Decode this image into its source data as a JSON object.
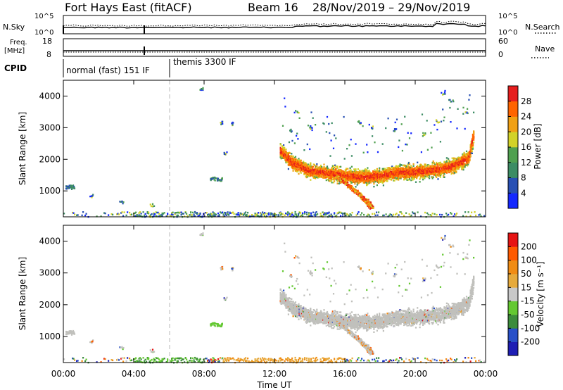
{
  "header": {
    "title": "Fort Hays East (fitACF)",
    "beam": "Beam 16",
    "date_range": "28/Nov/2019 – 29/Nov/2019"
  },
  "strip_noise": {
    "left_label": "N.Sky",
    "right_label": "N.Search",
    "left_ticks": [
      "10^5",
      "10^0"
    ],
    "right_ticks": [
      "10^5",
      "10^0"
    ],
    "right_legend_line": "dotted"
  },
  "strip_freq": {
    "left_label_1": "Freq.",
    "left_label_2": "[MHz]",
    "right_label": "Nave",
    "left_ticks": [
      "18",
      "8"
    ],
    "right_ticks": [
      "60",
      "0"
    ],
    "right_legend_line": "dotted"
  },
  "strip_cpid": {
    "label": "CPID",
    "segments": [
      {
        "name": "normal (fast) 151 IF",
        "start_hour": 0,
        "end_hour": 6
      },
      {
        "name": "themis 3300 IF",
        "start_hour": 6,
        "end_hour": 24
      }
    ]
  },
  "power_panel": {
    "ylabel": "Slant Range [km]",
    "yticks": [
      "4000",
      "3000",
      "2000",
      "1000"
    ],
    "colorbar_label": "Power [dB]",
    "colorbar_ticks": [
      "28",
      "24",
      "20",
      "16",
      "12",
      "8",
      "4"
    ]
  },
  "velocity_panel": {
    "ylabel": "Slant Range [km]",
    "yticks": [
      "4000",
      "3000",
      "2000",
      "1000"
    ],
    "colorbar_label": "Velocity [m s⁻¹]",
    "colorbar_ticks": [
      "200",
      "100",
      "50",
      "15",
      "-15",
      "-50",
      "-100",
      "-200"
    ]
  },
  "xaxis": {
    "label": "Time UT",
    "ticks": [
      "00:00",
      "04:00",
      "08:00",
      "12:00",
      "16:00",
      "20:00",
      "00:00"
    ]
  },
  "colors": {
    "power_scale": [
      "#1428ff",
      "#2850b4",
      "#3c8c64",
      "#50a050",
      "#d2d228",
      "#f0a014",
      "#ff6400",
      "#e61e1e"
    ],
    "velocity_scale": [
      "#1e1eb4",
      "#2850c8",
      "#3c8c3c",
      "#64c832",
      "#c8c8c8",
      "#e6aa3c",
      "#f08c14",
      "#ff5a00",
      "#e61414"
    ],
    "grey_ground": "#c0c0bc"
  },
  "chart_data": {
    "type": "heatmap",
    "x_unit": "hours UT",
    "xlim": [
      0,
      24
    ],
    "ylim": [
      180,
      4500
    ],
    "ylabel": "Slant Range [km]",
    "xlabel": "Time UT",
    "power_zlim": [
      0,
      30
    ],
    "velocity_zlim": [
      -250,
      250
    ],
    "main_scatter_band": {
      "x_start_hour": 12.3,
      "x_end_hour": 23.3,
      "center_range_km": [
        [
          12.3,
          2300
        ],
        [
          13.0,
          1900
        ],
        [
          14.0,
          1650
        ],
        [
          15.0,
          1580
        ],
        [
          16.0,
          1500
        ],
        [
          17.0,
          1450
        ],
        [
          18.0,
          1500
        ],
        [
          19.0,
          1600
        ],
        [
          20.0,
          1620
        ],
        [
          21.0,
          1680
        ],
        [
          22.0,
          1780
        ],
        [
          23.0,
          2050
        ],
        [
          23.3,
          2800
        ]
      ],
      "peak_power_db": 28
    },
    "descending_branch": {
      "points": [
        [
          15.5,
          1500
        ],
        [
          16.5,
          1050
        ],
        [
          17.2,
          700
        ],
        [
          17.5,
          500
        ]
      ]
    },
    "cpid_change_hour": 6
  }
}
